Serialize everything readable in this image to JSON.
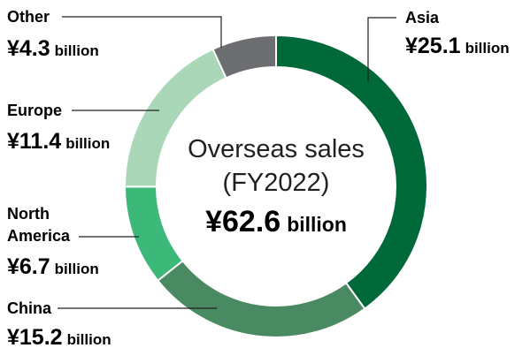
{
  "chart_data": {
    "type": "pie",
    "title": "Overseas sales",
    "subtitle": "(FY2022)",
    "total": {
      "prefix": "¥",
      "value": "62.6",
      "unit": "billion"
    },
    "currency_prefix": "¥",
    "unit": "billion",
    "segments": [
      {
        "name": "Asia",
        "value": 25.1,
        "label": "25.1",
        "color": "#00693a"
      },
      {
        "name": "China",
        "value": 15.2,
        "label": "15.2",
        "color": "#4a8a63"
      },
      {
        "name": "North America",
        "value": 6.7,
        "label": "6.7",
        "color": "#3cb878"
      },
      {
        "name": "Europe",
        "value": 11.4,
        "label": "11.4",
        "color": "#a9d7b7"
      },
      {
        "name": "Other",
        "value": 4.3,
        "label": "4.3",
        "color": "#6d6e71"
      }
    ]
  }
}
